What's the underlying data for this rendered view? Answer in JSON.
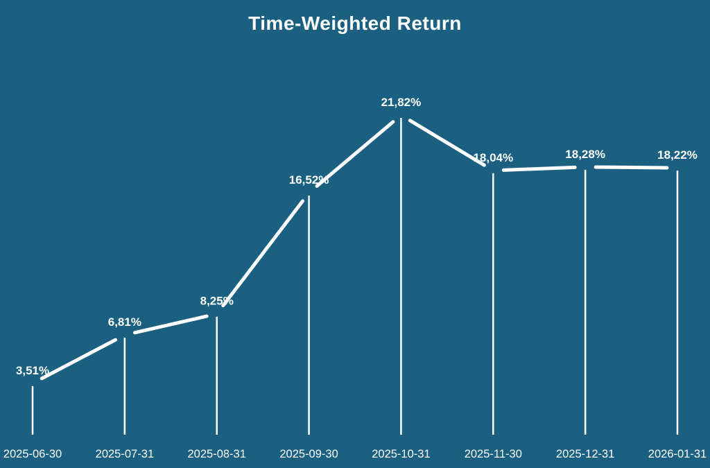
{
  "title": "Time-Weighted Return",
  "colors": {
    "background": "#1b6080",
    "foreground": "#ffffff"
  },
  "chart_data": {
    "type": "line",
    "title": "Time-Weighted Return",
    "x": [
      "2025-06-30",
      "2025-07-31",
      "2025-08-31",
      "2025-09-30",
      "2025-10-31",
      "2025-11-30",
      "2025-12-31",
      "2026-01-31"
    ],
    "values": [
      3.51,
      6.81,
      8.25,
      16.52,
      21.82,
      18.04,
      18.28,
      18.22
    ],
    "point_labels": [
      "3,51%",
      "6,81%",
      "8,25%",
      "16,52%",
      "21,82%",
      "18,04%",
      "18,28%",
      "18,22%"
    ],
    "ylabel": "",
    "xlabel": "",
    "ylim": [
      0,
      24
    ],
    "grid": false,
    "legend_position": "none",
    "style": {
      "line_color": "#ffffff",
      "drop_lines": true,
      "segment_gaps_at_points": true
    }
  }
}
